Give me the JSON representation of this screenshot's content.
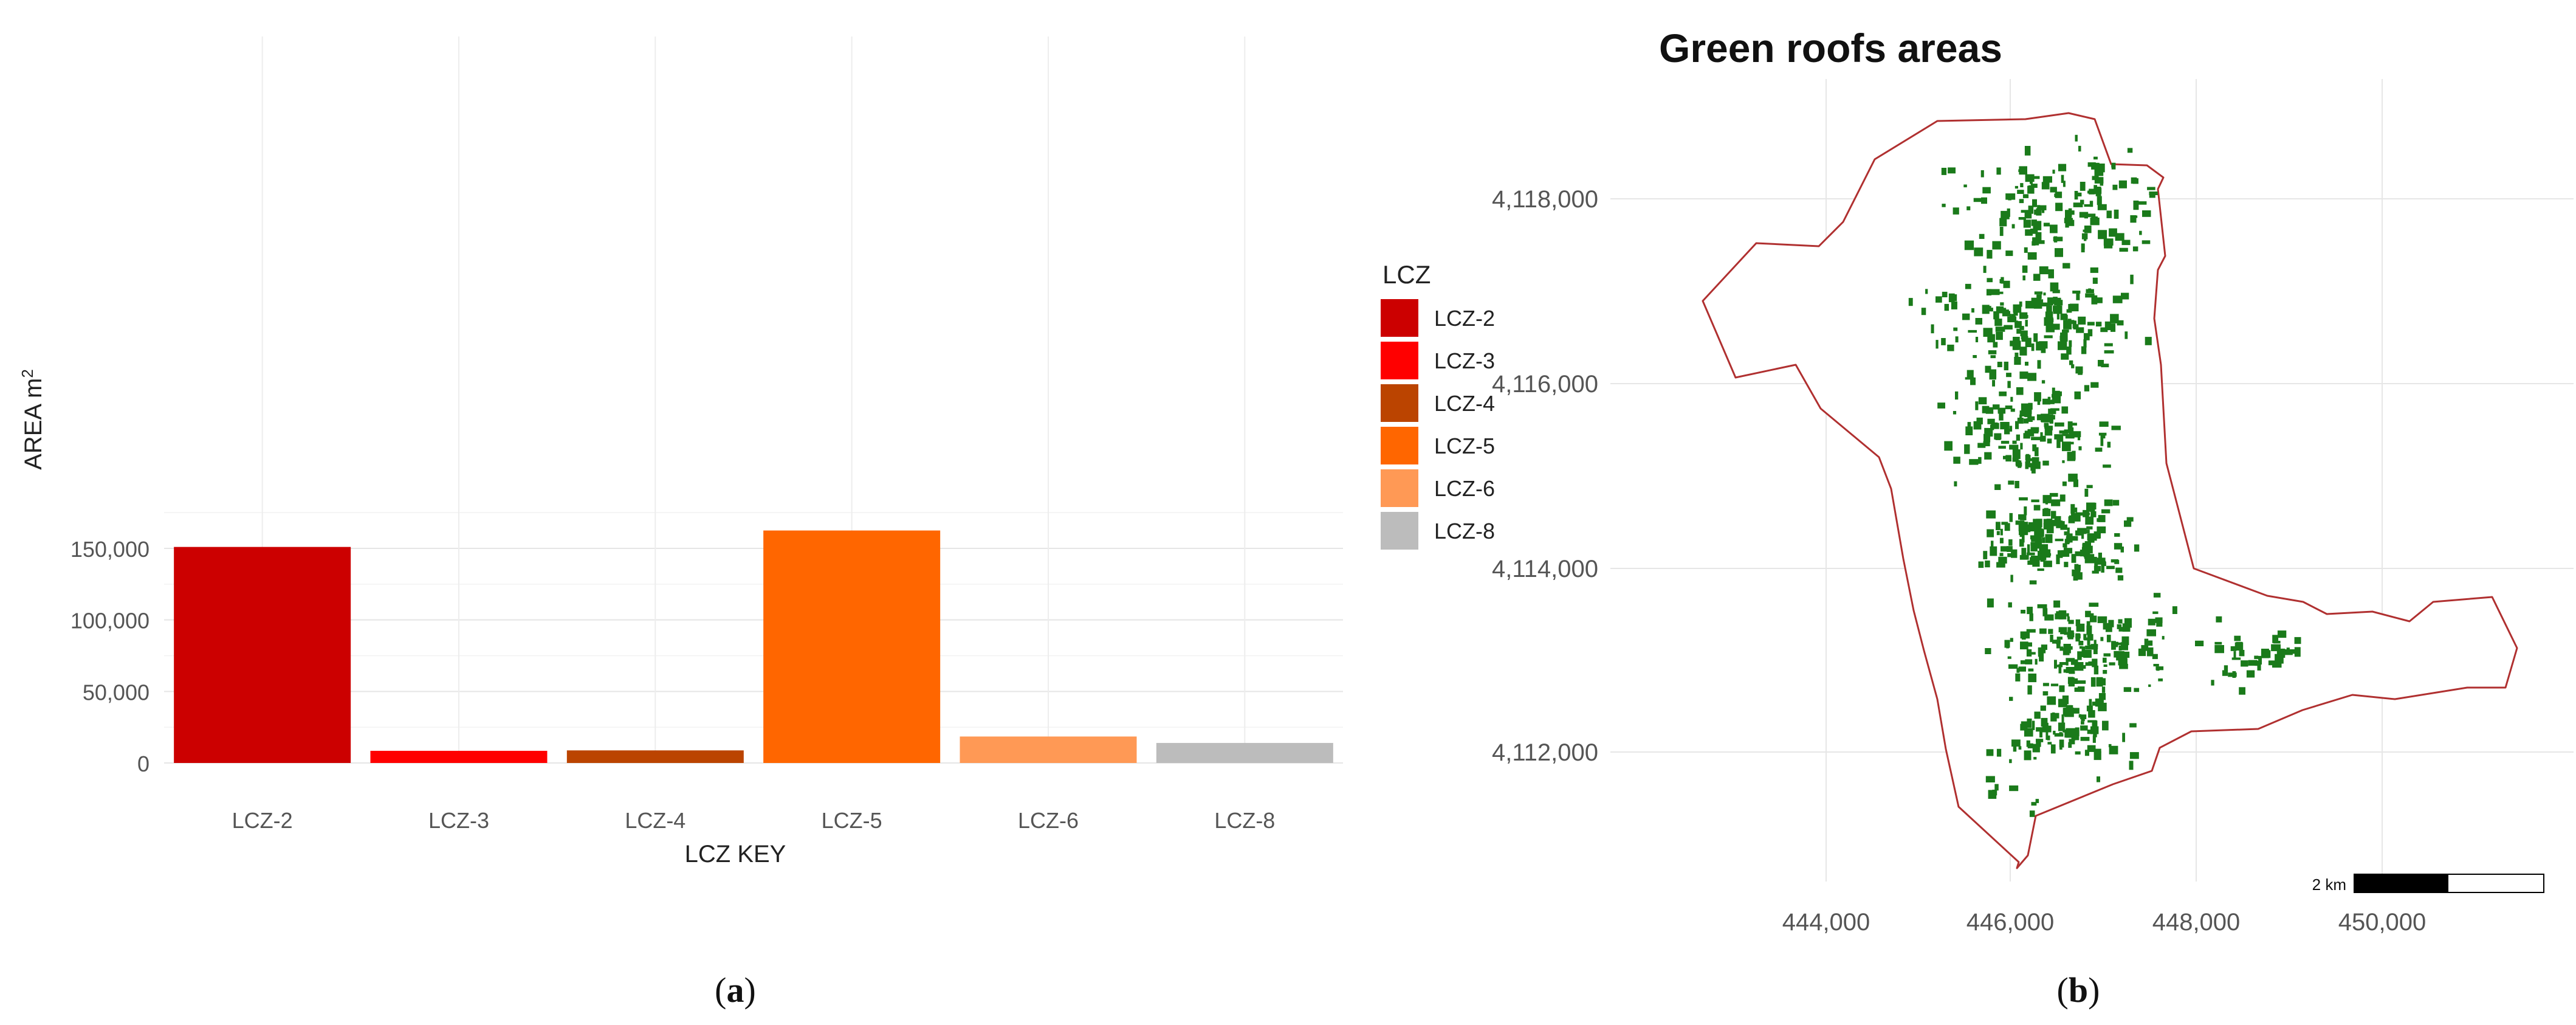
{
  "panel_a": {
    "caption": "(a)",
    "caption_parts": [
      "(",
      "a",
      ")"
    ],
    "legend_title": "LCZ",
    "legend_items": [
      {
        "label": "LCZ-2",
        "color": "#CC0000"
      },
      {
        "label": "LCZ-3",
        "color": "#FF0000"
      },
      {
        "label": "LCZ-4",
        "color": "#BB4400"
      },
      {
        "label": "LCZ-5",
        "color": "#FF6600"
      },
      {
        "label": "LCZ-6",
        "color": "#FF9955"
      },
      {
        "label": "LCZ-8",
        "color": "#BCBCBC"
      }
    ]
  },
  "panel_b": {
    "caption": "(b)",
    "caption_parts": [
      "(",
      "b",
      ")"
    ],
    "title": "Green roofs areas",
    "x_ticks": [
      "444,000",
      "446,000",
      "448,000",
      "450,000"
    ],
    "y_ticks": [
      "4,118,000",
      "4,116,000",
      "4,114,000",
      "4,112,000"
    ],
    "scale_bar_label": "2 km",
    "boundary_color": "#B03030",
    "roof_color": "#1A7A1A"
  },
  "chart_data": [
    {
      "type": "bar",
      "categories": [
        "LCZ-2",
        "LCZ-3",
        "LCZ-4",
        "LCZ-5",
        "LCZ-6",
        "LCZ-8"
      ],
      "values": [
        151000,
        8500,
        8800,
        162500,
        18500,
        14000
      ],
      "colors": [
        "#CC0000",
        "#FF0000",
        "#BB4400",
        "#FF6600",
        "#FF9955",
        "#BCBCBC"
      ],
      "title": "",
      "xlabel": "LCZ KEY",
      "ylabel_main": "AREA m",
      "ylabel_sup": "2",
      "yticks": [
        0,
        50000,
        100000,
        150000
      ],
      "ytick_labels": [
        "0",
        "50,000",
        "100,000",
        "150,000"
      ],
      "ylim": [
        0,
        168000
      ],
      "grid": true,
      "legend_position": "right"
    },
    {
      "type": "map",
      "title": "Green roofs areas",
      "x_ticks": [
        444000,
        446000,
        448000,
        450000
      ],
      "y_ticks": [
        4112000,
        4114000,
        4116000,
        4118000
      ],
      "grid": true
    }
  ]
}
